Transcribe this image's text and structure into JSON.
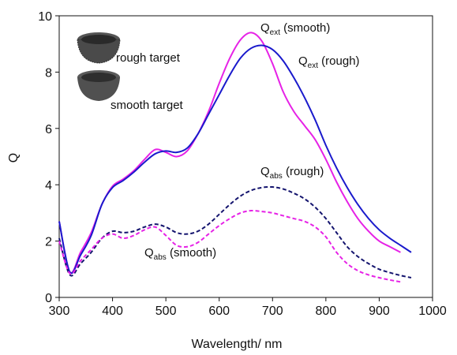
{
  "chart_data": {
    "type": "line",
    "x_label": "Wavelength/ nm",
    "y_label": "Q",
    "xlim": [
      300,
      1000
    ],
    "ylim": [
      0,
      10
    ],
    "xticks": [
      300,
      400,
      500,
      600,
      700,
      800,
      900,
      1000
    ],
    "yticks": [
      0,
      2,
      4,
      6,
      8,
      10
    ],
    "inset_labels": [
      "rough target",
      "smooth target"
    ],
    "series": [
      {
        "label": {
          "main": "Q",
          "sub": "ext",
          "rest": " (smooth)"
        },
        "color": "#e622e6",
        "dashed": false,
        "x": [
          300,
          320,
          340,
          360,
          380,
          400,
          420,
          440,
          460,
          480,
          500,
          520,
          540,
          560,
          580,
          600,
          620,
          640,
          660,
          680,
          700,
          720,
          740,
          760,
          780,
          800,
          820,
          840,
          860,
          880,
          900,
          920,
          940
        ],
        "values": [
          2.7,
          0.9,
          1.6,
          2.3,
          3.3,
          3.95,
          4.2,
          4.5,
          4.9,
          5.25,
          5.15,
          5.0,
          5.2,
          5.8,
          6.6,
          7.6,
          8.5,
          9.15,
          9.4,
          9.1,
          8.3,
          7.3,
          6.6,
          6.1,
          5.6,
          4.9,
          4.1,
          3.4,
          2.8,
          2.35,
          2.0,
          1.8,
          1.6
        ]
      },
      {
        "label": {
          "main": "Q",
          "sub": "ext",
          "rest": " (rough)"
        },
        "color": "#1a1acc",
        "dashed": false,
        "x": [
          300,
          320,
          340,
          360,
          380,
          400,
          420,
          440,
          460,
          480,
          500,
          520,
          540,
          560,
          580,
          600,
          620,
          640,
          660,
          680,
          700,
          720,
          740,
          760,
          780,
          800,
          820,
          840,
          860,
          880,
          900,
          920,
          940,
          960
        ],
        "values": [
          2.7,
          0.9,
          1.5,
          2.2,
          3.3,
          3.9,
          4.15,
          4.45,
          4.8,
          5.1,
          5.2,
          5.15,
          5.3,
          5.8,
          6.5,
          7.2,
          7.9,
          8.5,
          8.85,
          8.95,
          8.8,
          8.4,
          7.8,
          7.1,
          6.3,
          5.4,
          4.6,
          3.9,
          3.3,
          2.8,
          2.4,
          2.1,
          1.85,
          1.6
        ]
      },
      {
        "label": {
          "main": "Q",
          "sub": "abs",
          "rest": " (rough)"
        },
        "color": "#14146e",
        "dashed": true,
        "x": [
          300,
          320,
          340,
          360,
          380,
          400,
          420,
          440,
          460,
          480,
          500,
          520,
          540,
          560,
          580,
          600,
          620,
          640,
          660,
          680,
          700,
          720,
          740,
          760,
          780,
          800,
          820,
          840,
          860,
          880,
          900,
          920,
          940,
          960
        ],
        "values": [
          2.1,
          0.8,
          1.2,
          1.6,
          2.1,
          2.35,
          2.3,
          2.35,
          2.5,
          2.6,
          2.5,
          2.3,
          2.25,
          2.35,
          2.6,
          2.95,
          3.3,
          3.6,
          3.8,
          3.9,
          3.92,
          3.85,
          3.7,
          3.5,
          3.2,
          2.8,
          2.3,
          1.8,
          1.45,
          1.2,
          1.0,
          0.88,
          0.78,
          0.7
        ]
      },
      {
        "label": {
          "main": "Q",
          "sub": "abs",
          "rest": " (smooth)"
        },
        "color": "#e622e6",
        "dashed": true,
        "x": [
          300,
          320,
          340,
          360,
          380,
          400,
          420,
          440,
          460,
          480,
          500,
          520,
          540,
          560,
          580,
          600,
          620,
          640,
          660,
          680,
          700,
          720,
          740,
          760,
          780,
          800,
          820,
          840,
          860,
          880,
          900,
          920,
          940
        ],
        "values": [
          2.0,
          0.85,
          1.3,
          1.7,
          2.1,
          2.25,
          2.1,
          2.2,
          2.4,
          2.5,
          2.2,
          1.85,
          1.8,
          1.95,
          2.25,
          2.55,
          2.8,
          3.0,
          3.08,
          3.05,
          3.0,
          2.9,
          2.8,
          2.7,
          2.5,
          2.15,
          1.6,
          1.2,
          0.95,
          0.8,
          0.7,
          0.62,
          0.55
        ]
      }
    ]
  }
}
